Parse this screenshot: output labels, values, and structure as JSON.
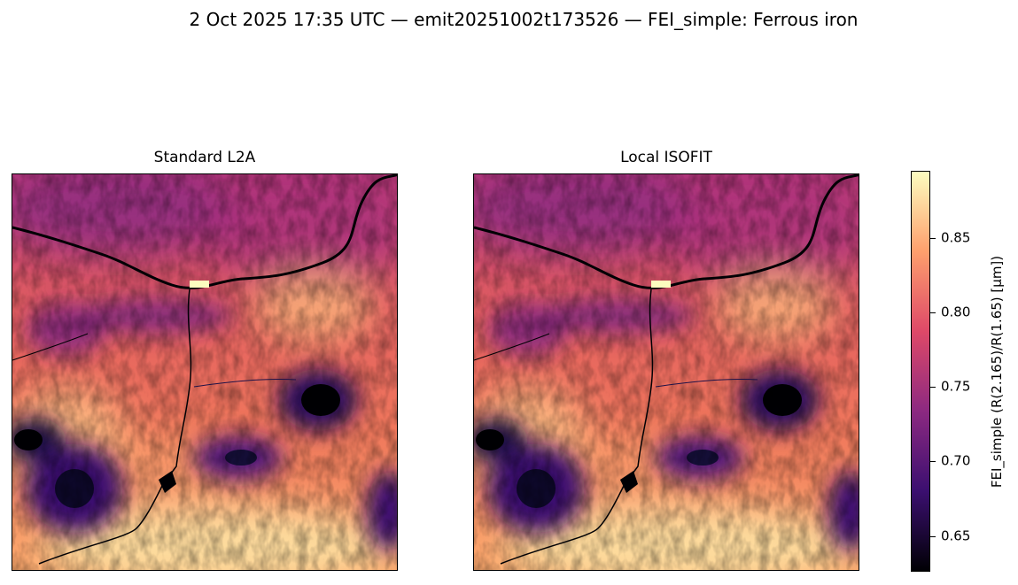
{
  "figure": {
    "suptitle": "2 Oct 2025 17:35 UTC — emit20251002t173526 — FEI_simple: Ferrous iron"
  },
  "panels": [
    {
      "title": "Standard L2A"
    },
    {
      "title": "Local ISOFIT"
    }
  ],
  "colorbar": {
    "label": "FEI_simple  (R(2.165)/R(1.65)  [µm])",
    "colormap": "magma",
    "range": [
      0.626,
      0.895
    ],
    "ticks": [
      "0.65",
      "0.70",
      "0.75",
      "0.80",
      "0.85"
    ],
    "tick_values": [
      0.65,
      0.7,
      0.75,
      0.8,
      0.85
    ]
  },
  "colors": {
    "low": "#000004",
    "mid_low": "#3b0f70",
    "mid": "#8c2981",
    "mid_high": "#de4968",
    "high": "#fe9f6d",
    "top": "#fcfdbf"
  }
}
